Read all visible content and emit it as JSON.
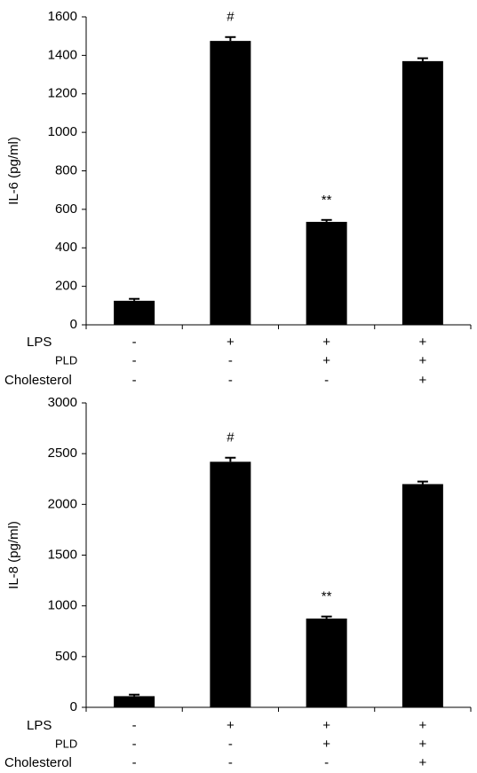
{
  "chart_data": [
    {
      "type": "bar",
      "y_label": "IL-6 (pg/ml)",
      "values": [
        125,
        1475,
        535,
        1370
      ],
      "errors": [
        10,
        20,
        10,
        15
      ],
      "annotations": [
        null,
        "#",
        "**",
        null
      ],
      "color": "#000000",
      "conditions": [
        {
          "name": "LPS",
          "values": [
            "-",
            "+",
            "+",
            "+"
          ]
        },
        {
          "name": "PLD",
          "values": [
            "-",
            "-",
            "+",
            "+"
          ]
        },
        {
          "name": "Cholesterol",
          "values": [
            "-",
            "-",
            "-",
            "+"
          ]
        }
      ],
      "ylim": [
        0,
        1600
      ],
      "yticks": [
        0,
        200,
        400,
        600,
        800,
        1000,
        1200,
        1400,
        1600
      ]
    },
    {
      "type": "bar",
      "y_label": "IL-8 (pg/ml)",
      "values": [
        110,
        2420,
        875,
        2200
      ],
      "errors": [
        15,
        40,
        20,
        25
      ],
      "annotations": [
        null,
        "#",
        "**",
        null
      ],
      "color": "#000000",
      "conditions": [
        {
          "name": "LPS",
          "values": [
            "-",
            "+",
            "+",
            "+"
          ]
        },
        {
          "name": "PLD",
          "values": [
            "-",
            "-",
            "+",
            "+"
          ]
        },
        {
          "name": "Cholesterol",
          "values": [
            "-",
            "-",
            "-",
            "+"
          ]
        }
      ],
      "ylim": [
        0,
        3000
      ],
      "yticks": [
        0,
        500,
        1000,
        1500,
        2000,
        2500,
        3000
      ]
    }
  ]
}
